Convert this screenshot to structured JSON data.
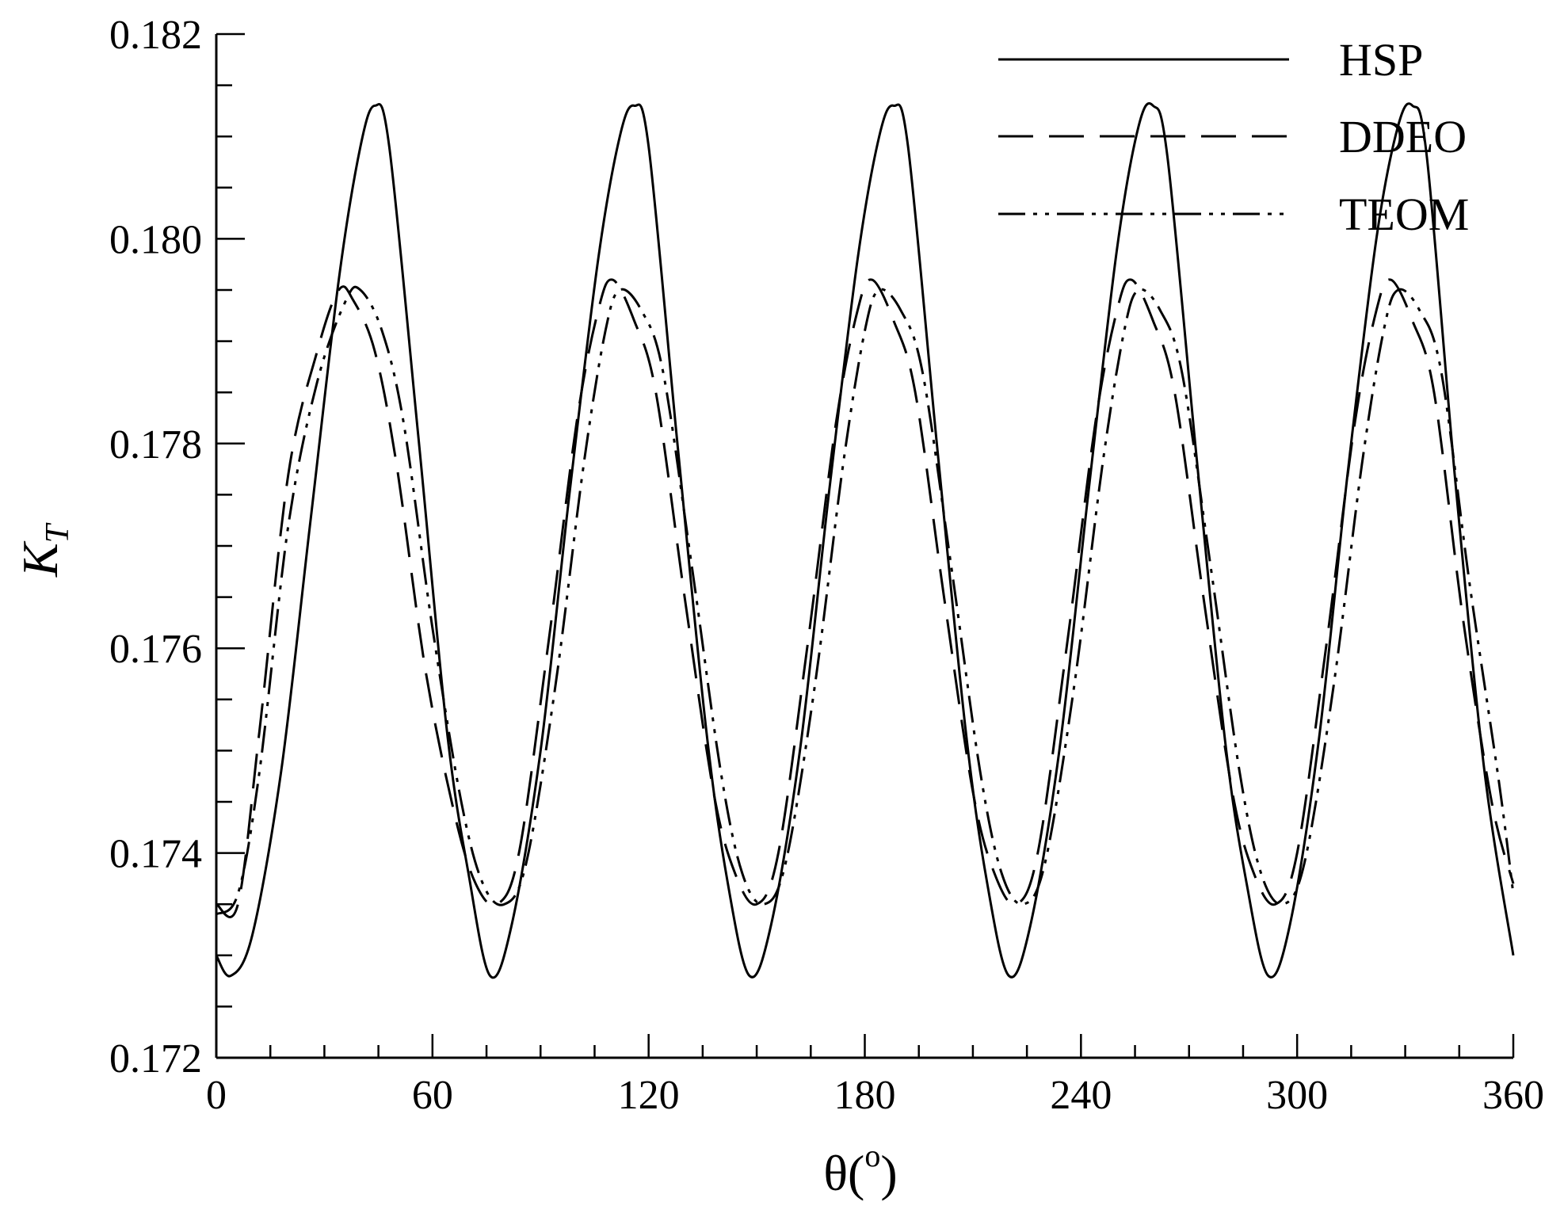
{
  "chart_data": {
    "type": "line",
    "title": "",
    "xlabel": "θ(°)",
    "xlabel_main": "θ(",
    "xlabel_sup": "o",
    "xlabel_end": ")",
    "ylabel": "K_T",
    "ylabel_main": "K",
    "ylabel_sub": "T",
    "xlim": [
      0,
      360
    ],
    "ylim": [
      0.172,
      0.182
    ],
    "x_ticks": [
      "0",
      "60",
      "120",
      "180",
      "240",
      "300",
      "360"
    ],
    "y_ticks": [
      "0.172",
      "0.174",
      "0.176",
      "0.178",
      "0.180",
      "0.182"
    ],
    "grid": false,
    "legend_position": "top-right",
    "series": [
      {
        "name": "HSP",
        "dash": "solid",
        "x": [
          0,
          4,
          10,
          18,
          26,
          34,
          40,
          44,
          48,
          56,
          64,
          70,
          76,
          82,
          90,
          98,
          106,
          112,
          116,
          120,
          128,
          136,
          142,
          148,
          154,
          162,
          170,
          178,
          184,
          188,
          192,
          200,
          208,
          214,
          220,
          226,
          234,
          242,
          250,
          256,
          260,
          264,
          272,
          280,
          286,
          292,
          298,
          306,
          314,
          322,
          328,
          332,
          336,
          344,
          352,
          360
        ],
        "y": [
          0.173,
          0.1728,
          0.1732,
          0.1748,
          0.1772,
          0.1796,
          0.1809,
          0.1813,
          0.1809,
          0.1781,
          0.1752,
          0.1738,
          0.1728,
          0.1733,
          0.175,
          0.1775,
          0.1798,
          0.181,
          0.1813,
          0.1809,
          0.178,
          0.1752,
          0.1737,
          0.1728,
          0.1733,
          0.175,
          0.1775,
          0.1798,
          0.181,
          0.1813,
          0.1809,
          0.178,
          0.1752,
          0.1737,
          0.1728,
          0.1733,
          0.175,
          0.1775,
          0.1799,
          0.1811,
          0.1813,
          0.1808,
          0.1779,
          0.1751,
          0.1737,
          0.1728,
          0.1733,
          0.1751,
          0.1777,
          0.18,
          0.1811,
          0.1813,
          0.1808,
          0.1776,
          0.1748,
          0.173
        ]
      },
      {
        "name": "DDEO",
        "dash": "long-dash",
        "x": [
          0,
          6,
          12,
          20,
          28,
          34,
          38,
          44,
          50,
          58,
          66,
          72,
          78,
          84,
          92,
          100,
          106,
          110,
          116,
          122,
          130,
          138,
          144,
          150,
          156,
          164,
          172,
          178,
          182,
          188,
          194,
          202,
          210,
          216,
          222,
          228,
          236,
          244,
          250,
          254,
          260,
          266,
          274,
          282,
          288,
          294,
          300,
          308,
          316,
          322,
          326,
          332,
          338,
          346,
          354,
          360
        ],
        "y": [
          0.1735,
          0.1735,
          0.1752,
          0.1777,
          0.1789,
          0.1795,
          0.1794,
          0.1789,
          0.1778,
          0.1758,
          0.1744,
          0.1737,
          0.1735,
          0.174,
          0.176,
          0.1782,
          0.1793,
          0.1796,
          0.1792,
          0.1785,
          0.1765,
          0.1746,
          0.1738,
          0.1735,
          0.174,
          0.176,
          0.1782,
          0.1793,
          0.1796,
          0.1792,
          0.1785,
          0.1765,
          0.1746,
          0.1738,
          0.1735,
          0.174,
          0.176,
          0.1782,
          0.1793,
          0.1796,
          0.1792,
          0.1785,
          0.1765,
          0.1746,
          0.1738,
          0.1735,
          0.174,
          0.176,
          0.1782,
          0.1793,
          0.1796,
          0.1792,
          0.1785,
          0.1763,
          0.1745,
          0.1737
        ]
      },
      {
        "name": "TEOM",
        "dash": "dash-dot-dot",
        "x": [
          0,
          6,
          12,
          20,
          28,
          36,
          40,
          46,
          52,
          60,
          68,
          74,
          80,
          86,
          94,
          102,
          108,
          112,
          118,
          124,
          132,
          140,
          146,
          152,
          158,
          166,
          174,
          180,
          184,
          190,
          196,
          204,
          212,
          218,
          224,
          230,
          238,
          246,
          252,
          256,
          262,
          268,
          276,
          284,
          290,
          296,
          302,
          310,
          318,
          324,
          328,
          334,
          340,
          348,
          356,
          360
        ],
        "y": [
          0.1734,
          0.1736,
          0.1748,
          0.1772,
          0.1786,
          0.1794,
          0.1795,
          0.1791,
          0.1782,
          0.1762,
          0.1745,
          0.1737,
          0.1735,
          0.1739,
          0.1756,
          0.1778,
          0.1791,
          0.1795,
          0.1793,
          0.1787,
          0.1768,
          0.1748,
          0.1738,
          0.1735,
          0.1739,
          0.1756,
          0.1778,
          0.1791,
          0.1795,
          0.1793,
          0.1787,
          0.1768,
          0.1748,
          0.1738,
          0.1735,
          0.1739,
          0.1756,
          0.1778,
          0.1791,
          0.1795,
          0.1793,
          0.1787,
          0.1768,
          0.1748,
          0.1738,
          0.1735,
          0.1739,
          0.1756,
          0.1778,
          0.1791,
          0.1795,
          0.1793,
          0.1787,
          0.1766,
          0.1747,
          0.1736
        ]
      }
    ]
  }
}
